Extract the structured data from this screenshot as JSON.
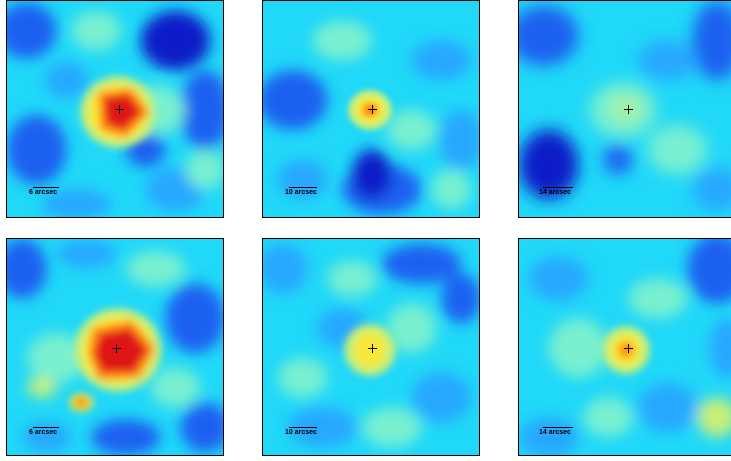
{
  "figure": {
    "colormap": [
      "#0a1fc8",
      "#1e60f0",
      "#28a8ff",
      "#18e8f8",
      "#78f0d0",
      "#c8f078",
      "#f8e838",
      "#ff8a10",
      "#e01818"
    ],
    "panels": [
      {
        "id": "p1",
        "scale_label": "6 arcsec",
        "peak_level": 1.0,
        "peak_shape": "pentagon"
      },
      {
        "id": "p2",
        "scale_label": "10 arcsec",
        "peak_level": 0.8,
        "peak_shape": "point"
      },
      {
        "id": "p3",
        "scale_label": "14 arcsec",
        "peak_level": 0.55,
        "peak_shape": "diffuse"
      },
      {
        "id": "p4",
        "scale_label": "6 arcsec",
        "peak_level": 1.0,
        "peak_shape": "pentagon"
      },
      {
        "id": "p5",
        "scale_label": "10 arcsec",
        "peak_level": 0.75,
        "peak_shape": "point"
      },
      {
        "id": "p6",
        "scale_label": "14 arcsec",
        "peak_level": 0.78,
        "peak_shape": "point"
      }
    ]
  }
}
